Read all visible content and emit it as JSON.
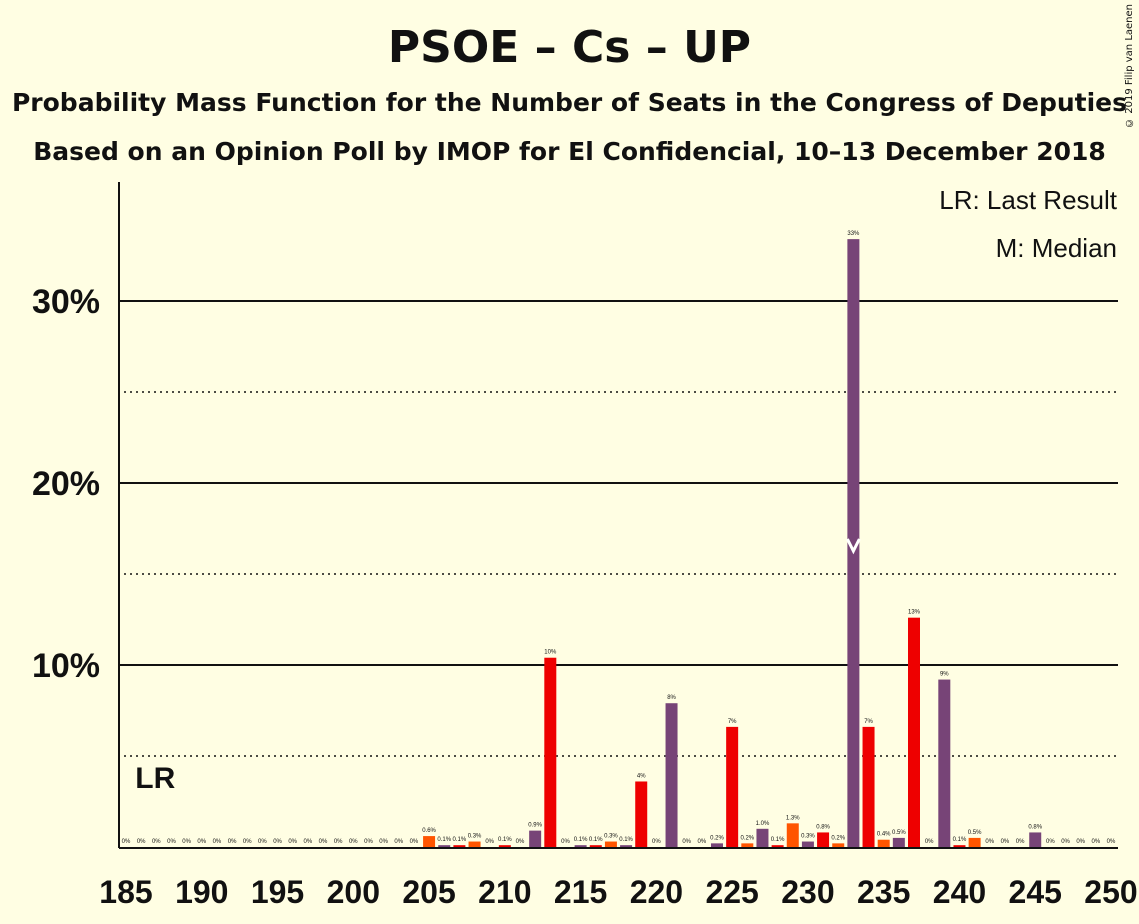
{
  "title": "PSOE – Cs – UP",
  "subtitle_1": "Probability Mass Function for the Number of Seats in the Congress of Deputies",
  "subtitle_2": "Based on an Opinion Poll by IMOP for El Confidencial, 10–13 December 2018",
  "copyright": "© 2019 Filip van Laenen",
  "legend": {
    "lr": "LR: Last Result",
    "median": "M: Median"
  },
  "colors": {
    "background": "#FFFEE3",
    "red": "#EE0000",
    "orange": "#FF5500",
    "purple": "#774477",
    "axis": "#111111"
  },
  "chart_data": {
    "type": "bar",
    "xlim": [
      185,
      250
    ],
    "ylim": [
      0,
      35
    ],
    "x_ticks": [
      185,
      190,
      195,
      200,
      205,
      210,
      215,
      220,
      225,
      230,
      235,
      240,
      245,
      250
    ],
    "y_ticks": [
      {
        "value": 10,
        "label": "10%"
      },
      {
        "value": 20,
        "label": "20%"
      },
      {
        "value": 30,
        "label": "30%"
      }
    ],
    "minor_gridlines": [
      5,
      15,
      25
    ],
    "last_result": {
      "x": 187,
      "label": "LR"
    },
    "median": {
      "x": 233
    },
    "bars": [
      {
        "x": 185,
        "v": 0,
        "label": "0%",
        "c": "purple"
      },
      {
        "x": 186,
        "v": 0,
        "label": "0%",
        "c": "orange"
      },
      {
        "x": 187,
        "v": 0,
        "label": "0%",
        "c": "red"
      },
      {
        "x": 188,
        "v": 0,
        "label": "0%",
        "c": "orange"
      },
      {
        "x": 189,
        "v": 0,
        "label": "0%",
        "c": "purple"
      },
      {
        "x": 190,
        "v": 0,
        "label": "0%",
        "c": "red"
      },
      {
        "x": 191,
        "v": 0,
        "label": "0%",
        "c": "orange"
      },
      {
        "x": 192,
        "v": 0,
        "label": "0%",
        "c": "purple"
      },
      {
        "x": 193,
        "v": 0,
        "label": "0%",
        "c": "red"
      },
      {
        "x": 194,
        "v": 0,
        "label": "0%",
        "c": "orange"
      },
      {
        "x": 195,
        "v": 0,
        "label": "0%",
        "c": "purple"
      },
      {
        "x": 196,
        "v": 0,
        "label": "0%",
        "c": "red"
      },
      {
        "x": 197,
        "v": 0,
        "label": "0%",
        "c": "orange"
      },
      {
        "x": 198,
        "v": 0,
        "label": "0%",
        "c": "purple"
      },
      {
        "x": 199,
        "v": 0,
        "label": "0%",
        "c": "red"
      },
      {
        "x": 200,
        "v": 0,
        "label": "0%",
        "c": "orange"
      },
      {
        "x": 201,
        "v": 0,
        "label": "0%",
        "c": "purple"
      },
      {
        "x": 202,
        "v": 0,
        "label": "0%",
        "c": "red"
      },
      {
        "x": 203,
        "v": 0,
        "label": "0%",
        "c": "orange"
      },
      {
        "x": 204,
        "v": 0,
        "label": "0%",
        "c": "purple"
      },
      {
        "x": 205,
        "v": 0.6,
        "label": "0.6%",
        "c": "orange"
      },
      {
        "x": 206,
        "v": 0.1,
        "label": "0.1%",
        "c": "purple"
      },
      {
        "x": 207,
        "v": 0.1,
        "label": "0.1%",
        "c": "red"
      },
      {
        "x": 208,
        "v": 0.3,
        "label": "0.3%",
        "c": "orange"
      },
      {
        "x": 209,
        "v": 0,
        "label": "0%",
        "c": "purple"
      },
      {
        "x": 210,
        "v": 0.1,
        "label": "0.1%",
        "c": "red"
      },
      {
        "x": 211,
        "v": 0,
        "label": "0%",
        "c": "orange"
      },
      {
        "x": 212,
        "v": 0.9,
        "label": "0.9%",
        "c": "purple"
      },
      {
        "x": 213,
        "v": 10.4,
        "label": "10%",
        "c": "red"
      },
      {
        "x": 214,
        "v": 0,
        "label": "0%",
        "c": "orange"
      },
      {
        "x": 215,
        "v": 0.1,
        "label": "0.1%",
        "c": "purple"
      },
      {
        "x": 216,
        "v": 0.1,
        "label": "0.1%",
        "c": "red"
      },
      {
        "x": 217,
        "v": 0.3,
        "label": "0.3%",
        "c": "orange"
      },
      {
        "x": 218,
        "v": 0.1,
        "label": "0.1%",
        "c": "purple"
      },
      {
        "x": 219,
        "v": 3.6,
        "label": "4%",
        "c": "red"
      },
      {
        "x": 220,
        "v": 0,
        "label": "0%",
        "c": "orange"
      },
      {
        "x": 221,
        "v": 7.9,
        "label": "8%",
        "c": "purple"
      },
      {
        "x": 222,
        "v": 0,
        "label": "0%",
        "c": "red"
      },
      {
        "x": 223,
        "v": 0,
        "label": "0%",
        "c": "orange"
      },
      {
        "x": 224,
        "v": 0.2,
        "label": "0.2%",
        "c": "purple"
      },
      {
        "x": 225,
        "v": 6.6,
        "label": "7%",
        "c": "red"
      },
      {
        "x": 226,
        "v": 0.2,
        "label": "0.2%",
        "c": "orange"
      },
      {
        "x": 227,
        "v": 1.0,
        "label": "1.0%",
        "c": "purple"
      },
      {
        "x": 228,
        "v": 0.1,
        "label": "0.1%",
        "c": "red"
      },
      {
        "x": 229,
        "v": 1.3,
        "label": "1.3%",
        "c": "orange"
      },
      {
        "x": 230,
        "v": 0.3,
        "label": "0.3%",
        "c": "purple"
      },
      {
        "x": 231,
        "v": 0.8,
        "label": "0.8%",
        "c": "red"
      },
      {
        "x": 232,
        "v": 0.2,
        "label": "0.2%",
        "c": "orange"
      },
      {
        "x": 233,
        "v": 33.4,
        "label": "33%",
        "c": "purple"
      },
      {
        "x": 234,
        "v": 6.6,
        "label": "7%",
        "c": "red"
      },
      {
        "x": 235,
        "v": 0.4,
        "label": "0.4%",
        "c": "orange"
      },
      {
        "x": 236,
        "v": 0.5,
        "label": "0.5%",
        "c": "purple"
      },
      {
        "x": 237,
        "v": 12.6,
        "label": "13%",
        "c": "red"
      },
      {
        "x": 238,
        "v": 0,
        "label": "0%",
        "c": "orange"
      },
      {
        "x": 239,
        "v": 9.2,
        "label": "9%",
        "c": "purple"
      },
      {
        "x": 240,
        "v": 0.1,
        "label": "0.1%",
        "c": "red"
      },
      {
        "x": 241,
        "v": 0.5,
        "label": "0.5%",
        "c": "orange"
      },
      {
        "x": 242,
        "v": 0,
        "label": "0%",
        "c": "purple"
      },
      {
        "x": 243,
        "v": 0,
        "label": "0%",
        "c": "red"
      },
      {
        "x": 244,
        "v": 0,
        "label": "0%",
        "c": "orange"
      },
      {
        "x": 245,
        "v": 0.8,
        "label": "0.8%",
        "c": "purple"
      },
      {
        "x": 246,
        "v": 0,
        "label": "0%",
        "c": "red"
      },
      {
        "x": 247,
        "v": 0,
        "label": "0%",
        "c": "orange"
      },
      {
        "x": 248,
        "v": 0,
        "label": "0%",
        "c": "purple"
      },
      {
        "x": 249,
        "v": 0,
        "label": "0%",
        "c": "red"
      },
      {
        "x": 250,
        "v": 0,
        "label": "0%",
        "c": "orange"
      }
    ]
  }
}
